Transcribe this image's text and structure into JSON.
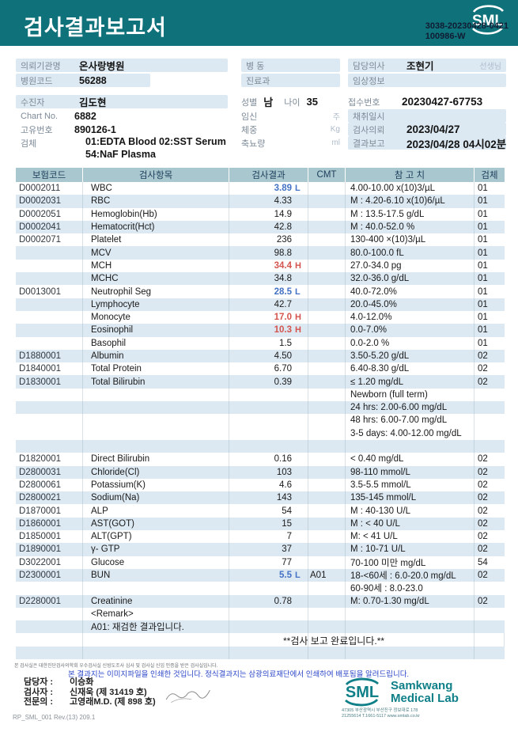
{
  "colors": {
    "banner_teal": "#0f7179",
    "table_header_bg": "#a9c7cf",
    "row_stripe": "#dde9f2",
    "chip_bg": "#dde9f2",
    "flag_low_blue": "#4472c4",
    "flag_high_red": "#d4544f",
    "logo_teal": "#0f7f88"
  },
  "header": {
    "title": "검사결과보고서",
    "logo_text": "SML",
    "report_no_line1": "3038-20230428-0421",
    "report_no_line2": "100986-W"
  },
  "patient": {
    "left": [
      {
        "label": "의뢰기관명",
        "value": "온사랑병원"
      },
      {
        "label": "병원코드",
        "value": "56288"
      },
      {
        "label": "수진자",
        "value": "김도현"
      },
      {
        "label": "Chart No.",
        "value": "6882"
      },
      {
        "label": "고유번호",
        "value": "890126-1"
      },
      {
        "label": "검체",
        "value": "01:EDTA Blood 02:SST Serum 54:NaF Plasma"
      }
    ],
    "mid": [
      {
        "label": "병 동",
        "value": ""
      },
      {
        "label": "진료과",
        "value": ""
      },
      {
        "pairs": {
          "l1": "성별",
          "v1": "남",
          "l2": "나이",
          "v2": "35"
        }
      },
      {
        "label": "임신",
        "unit": "주"
      },
      {
        "label": "체중",
        "unit": "Kg"
      },
      {
        "label": "축뇨량",
        "unit": "ml"
      }
    ],
    "right": [
      {
        "label": "담당의사",
        "value": "조현기",
        "suffix": "선생님"
      },
      {
        "label": "임상정보",
        "value": ""
      },
      {
        "label": "접수번호",
        "value": "20230427-67753"
      },
      {
        "label": "채취일시",
        "value": ""
      },
      {
        "label": "검사의뢰",
        "value": "2023/04/27"
      },
      {
        "label": "결과보고",
        "value": "2023/04/28 04시02분"
      }
    ]
  },
  "table": {
    "columns": [
      "보험코드",
      "검사항목",
      "검사결과",
      "CMT",
      "참 고 치",
      "검체"
    ],
    "rows": [
      {
        "code": "D0002011",
        "name": "WBC",
        "result": "3.89",
        "flag": "L",
        "ref": "4.00-10.00 x(10)3/µL",
        "spec": "01",
        "bg": "w"
      },
      {
        "code": "D0002031",
        "name": "RBC",
        "result": "4.33",
        "ref": "M : 4.20-6.10 x(10)6/µL",
        "spec": "01",
        "bg": "s"
      },
      {
        "code": "D0002051",
        "name": "Hemoglobin(Hb)",
        "result": "14.9",
        "ref": "M : 13.5-17.5 g/dL",
        "spec": "01",
        "bg": "w"
      },
      {
        "code": "D0002041",
        "name": "Hematocrit(Hct)",
        "result": "42.8",
        "ref": "M : 40.0-52.0 %",
        "spec": "01",
        "bg": "s"
      },
      {
        "code": "D0002071",
        "name": "Platelet",
        "result": "236",
        "ref": "130-400 ×(10)3/µL",
        "spec": "01",
        "bg": "w"
      },
      {
        "name": "MCV",
        "result": "98.8",
        "ref": "80.0-100.0 fL",
        "spec": "01",
        "bg": "s"
      },
      {
        "name": "MCH",
        "result": "34.4",
        "flag": "H",
        "ref": "27.0-34.0 pg",
        "spec": "01",
        "bg": "w"
      },
      {
        "name": "MCHC",
        "result": "34.8",
        "ref": "32.0-36.0 g/dL",
        "spec": "01",
        "bg": "s"
      },
      {
        "code": "D0013001",
        "name": "Neutrophil Seg",
        "result": "28.5",
        "flag": "L",
        "ref": "40.0-72.0%",
        "spec": "01",
        "bg": "w"
      },
      {
        "name": "Lymphocyte",
        "result": "42.7",
        "ref": "20.0-45.0%",
        "spec": "01",
        "bg": "s"
      },
      {
        "name": "Monocyte",
        "result": "17.0",
        "flag": "H",
        "ref": "4.0-12.0%",
        "spec": "01",
        "bg": "w"
      },
      {
        "name": "Eosinophil",
        "result": "10.3",
        "flag": "H",
        "ref": "0.0-7.0%",
        "spec": "01",
        "bg": "s"
      },
      {
        "name": "Basophil",
        "result": "1.5",
        "ref": "0.0-2.0 %",
        "spec": "01",
        "bg": "w"
      },
      {
        "code": "D1880001",
        "name": "Albumin",
        "result": "4.50",
        "ref": "3.50-5.20 g/dL",
        "spec": "02",
        "bg": "s"
      },
      {
        "code": "D1840001",
        "name": "Total Protein",
        "result": "6.70",
        "ref": "6.40-8.30 g/dL",
        "spec": "02",
        "bg": "w"
      },
      {
        "code": "D1830001",
        "name": "Total Bilirubin",
        "result": "0.39",
        "ref": "≤ 1.20 mg/dL",
        "spec": "02",
        "bg": "s"
      },
      {
        "ref": "Newborn (full term)",
        "bg": "w"
      },
      {
        "ref": "24 hrs: 2.00-6.00 mg/dL",
        "bg": "s"
      },
      {
        "ref": "48 hrs: 6.00-7.00 mg/dL",
        "bg": "w"
      },
      {
        "ref": "3-5 days: 4.00-12.00 mg/dL",
        "bg": "w"
      },
      {
        "bg": "s"
      },
      {
        "code": "D1820001",
        "name": "Direct Bilirubin",
        "result": "0.16",
        "ref": "< 0.40 mg/dL",
        "spec": "02",
        "bg": "w"
      },
      {
        "code": "D2800031",
        "name": "Chloride(Cl)",
        "result": "103",
        "ref": "98-110 mmol/L",
        "spec": "02",
        "bg": "s"
      },
      {
        "code": "D2800061",
        "name": "Potassium(K)",
        "result": "4.6",
        "ref": "3.5-5.5 mmol/L",
        "spec": "02",
        "bg": "w"
      },
      {
        "code": "D2800021",
        "name": "Sodium(Na)",
        "result": "143",
        "ref": "135-145 mmol/L",
        "spec": "02",
        "bg": "s"
      },
      {
        "code": "D1870001",
        "name": "ALP",
        "result": "54",
        "ref": "M : 40-130 U/L",
        "spec": "02",
        "bg": "w"
      },
      {
        "code": "D1860001",
        "name": "AST(GOT)",
        "result": "15",
        "ref": "M : < 40 U/L",
        "spec": "02",
        "bg": "s"
      },
      {
        "code": "D1850001",
        "name": "ALT(GPT)",
        "result": "7",
        "ref": "M: < 41 U/L",
        "spec": "02",
        "bg": "w"
      },
      {
        "code": "D1890001",
        "name": "γ- GTP",
        "result": "37",
        "ref": "M : 10-71 U/L",
        "spec": "02",
        "bg": "s"
      },
      {
        "code": "D3022001",
        "name": "Glucose",
        "result": "77",
        "ref": "70-100 미만 mg/dL",
        "spec": "54",
        "bg": "w"
      },
      {
        "code": "D2300001",
        "name": "BUN",
        "result": "5.5",
        "flag": "L",
        "cmt": "A01",
        "ref": "18-<60세 : 6.0-20.0 mg/dL",
        "spec": "02",
        "bg": "s"
      },
      {
        "ref": "60-90세 : 8.0-23.0",
        "bg": "w"
      },
      {
        "code": "D2280001",
        "name": "Creatinine",
        "result": "0.78",
        "ref": "M: 0.70-1.30 mg/dL",
        "spec": "02",
        "bg": "s"
      },
      {
        "name": "<Remark>",
        "bg": "w"
      },
      {
        "name": "A01: 재검한 결과입니다.",
        "bg": "s"
      },
      {
        "note": "**검사  보고  완료입니다.**",
        "bg": "w"
      },
      {
        "bg": "s"
      }
    ]
  },
  "footer": {
    "certification_note": "본 검사실은 대한진단검사의학회 우수검사실 신빙도조사 심사 및 검사실 신임 인증을 받은 검사실입니다.",
    "print_note": "본 결과지는 이미지파일을 인쇄한 것입니다. 정식결과지는 삼광의료재단에서 인쇄하여 배포됨을 알려드립니다.",
    "staff": [
      {
        "label": "담당자 :",
        "value": "이승화"
      },
      {
        "label": "검사자 :",
        "value": "신재욱 (제 31419 호)"
      },
      {
        "label": "전문의 :",
        "value": "고영래M.D. (제 898 호)"
      }
    ],
    "doc_code": "RP_SML_001 Rev.(13) 209.1",
    "lab": {
      "logo_text": "SML",
      "name_line1": "Samkwang",
      "name_line2": "Medical Lab",
      "address": "47305 부산광역시 부산진구 정보대로 178",
      "contact": "21255614 T.1661-5117 www.smlab.co.kr"
    }
  }
}
